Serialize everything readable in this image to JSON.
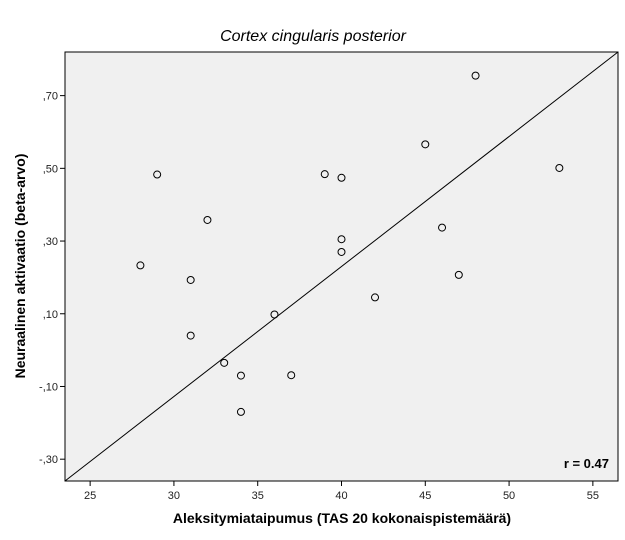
{
  "chart_data": {
    "type": "scatter",
    "title": "Cortex cingularis posterior",
    "xlabel": "Aleksitymiataipumus (TAS 20 kokonaispistemäärä)",
    "ylabel": "Neuraalinen aktivaatio (beta-arvo)",
    "xlim": [
      23.5,
      56.5
    ],
    "ylim": [
      -0.36,
      0.82
    ],
    "x_ticks": [
      25,
      30,
      35,
      40,
      45,
      50,
      55
    ],
    "x_tick_labels": [
      "25",
      "30",
      "35",
      "40",
      "45",
      "50",
      "55"
    ],
    "y_ticks": [
      -0.3,
      -0.1,
      0.1,
      0.3,
      0.5,
      0.7
    ],
    "y_tick_labels": [
      "-,30",
      "-,10",
      ",10",
      ",30",
      ",50",
      ",70"
    ],
    "grid": false,
    "background": "#f0f0f0",
    "marker_color": "#000000",
    "annotation": "r = 0.47",
    "fit_line": {
      "x": [
        23.5,
        56.5
      ],
      "y": [
        -0.36,
        0.82
      ]
    },
    "points": [
      {
        "x": 28,
        "y": 0.233
      },
      {
        "x": 29,
        "y": 0.483
      },
      {
        "x": 31,
        "y": 0.193
      },
      {
        "x": 31,
        "y": 0.04
      },
      {
        "x": 32,
        "y": 0.358
      },
      {
        "x": 33,
        "y": -0.035
      },
      {
        "x": 34,
        "y": -0.07
      },
      {
        "x": 34,
        "y": -0.17
      },
      {
        "x": 36,
        "y": 0.098
      },
      {
        "x": 37,
        "y": -0.069
      },
      {
        "x": 39,
        "y": 0.484
      },
      {
        "x": 40,
        "y": 0.474
      },
      {
        "x": 40,
        "y": 0.305
      },
      {
        "x": 40,
        "y": 0.27
      },
      {
        "x": 42,
        "y": 0.145
      },
      {
        "x": 45,
        "y": 0.566
      },
      {
        "x": 46,
        "y": 0.337
      },
      {
        "x": 47,
        "y": 0.207
      },
      {
        "x": 48,
        "y": 0.755
      },
      {
        "x": 53,
        "y": 0.501
      }
    ]
  }
}
